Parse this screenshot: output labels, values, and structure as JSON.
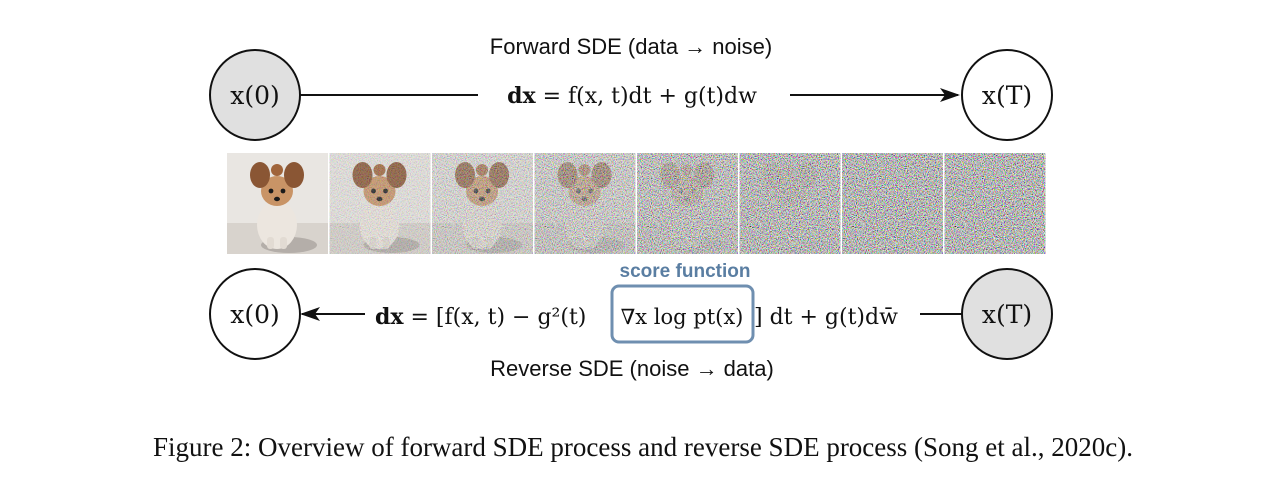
{
  "forward": {
    "title": "Forward SDE (data → noise)",
    "equation": {
      "lhs": "dx",
      "rhs": "f(x, t)dt + g(t)dw"
    },
    "start_node": "x(0)",
    "end_node": "x(T)"
  },
  "reverse": {
    "title": "Reverse SDE (noise → data)",
    "equation": {
      "lhs": "dx",
      "term_before": "f(x, t) − g²(t)",
      "score_term": "∇x log pt(x)",
      "term_after": "dt + g(t)dw̄"
    },
    "score_label": "score function",
    "start_node": "x(T)",
    "end_node": "x(0)"
  },
  "images": {
    "count": 8,
    "noise_levels": [
      0.0,
      0.25,
      0.45,
      0.65,
      0.85,
      0.95,
      1.0,
      1.0
    ],
    "subject_icon": "dog-photo"
  },
  "caption": {
    "label": "Figure 2:",
    "text": "Overview of forward SDE process and reverse SDE process (Song et al., 2020c)."
  },
  "colors": {
    "node_fill_gray": "#e0e0e0",
    "score_box": "#6f8fb0",
    "score_label": "#5a7ea2",
    "line": "#111111"
  }
}
